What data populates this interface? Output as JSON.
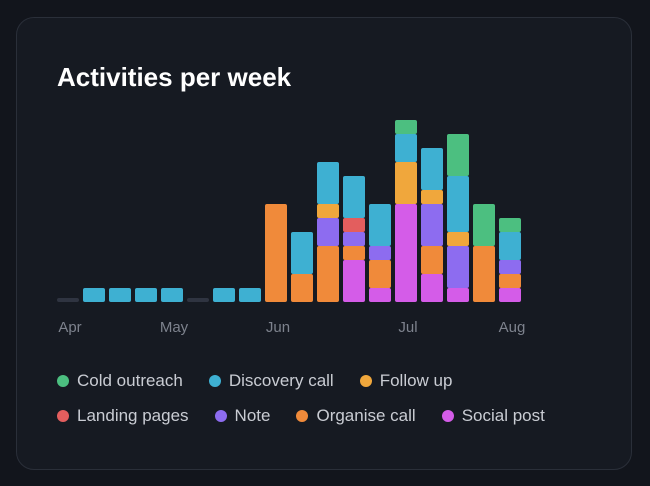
{
  "chart_data": {
    "type": "stacked-bar",
    "title": "Activities per week",
    "categories": [
      "Apr",
      null,
      null,
      null,
      "May",
      null,
      null,
      null,
      "Jun",
      null,
      null,
      null,
      null,
      "Jul",
      null,
      null,
      null,
      "Aug"
    ],
    "series": [
      {
        "name": "Cold outreach",
        "color": "#4cbf80",
        "values": [
          0,
          0,
          0,
          0,
          0,
          0,
          0,
          0,
          0,
          0,
          0,
          0,
          0,
          1,
          0,
          3,
          3,
          1
        ]
      },
      {
        "name": "Discovery call",
        "color": "#3eb0d2",
        "values": [
          0,
          1,
          1,
          1,
          1,
          0,
          1,
          1,
          0,
          3,
          3,
          3,
          3,
          2,
          3,
          4,
          0,
          2
        ]
      },
      {
        "name": "Follow up",
        "color": "#f0a73c",
        "values": [
          0,
          0,
          0,
          0,
          0,
          0,
          0,
          0,
          0,
          0,
          1,
          0,
          0,
          3,
          1,
          1,
          0,
          0
        ]
      },
      {
        "name": "Landing pages",
        "color": "#e35e5e",
        "values": [
          0,
          0,
          0,
          0,
          0,
          0,
          0,
          0,
          0,
          0,
          0,
          1,
          0,
          0,
          0,
          0,
          0,
          0
        ]
      },
      {
        "name": "Note",
        "color": "#8d6cf0",
        "values": [
          0,
          0,
          0,
          0,
          0,
          0,
          0,
          0,
          0,
          0,
          2,
          1,
          1,
          0,
          3,
          3,
          0,
          1
        ]
      },
      {
        "name": "Organise call",
        "color": "#f08a3a",
        "values": [
          0,
          0,
          0,
          0,
          0,
          0,
          0,
          0,
          7,
          2,
          4,
          1,
          2,
          0,
          2,
          0,
          4,
          1
        ]
      },
      {
        "name": "Social post",
        "color": "#d45ce8",
        "values": [
          0,
          0,
          0,
          0,
          0,
          0,
          0,
          0,
          0,
          0,
          0,
          3,
          1,
          7,
          2,
          1,
          0,
          1
        ]
      }
    ],
    "ylim": [
      0,
      13
    ]
  }
}
